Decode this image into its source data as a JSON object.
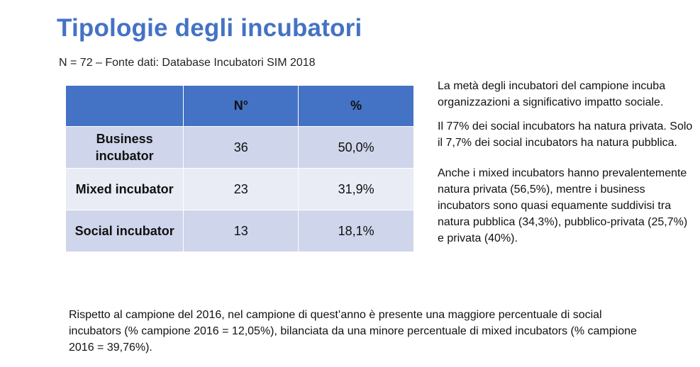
{
  "title": "Tipologie degli incubatori",
  "subtitle": "N = 72 – Fonte dati: Database Incubatori SIM 2018",
  "table": {
    "headers": [
      "",
      "N°",
      "%"
    ],
    "rows": [
      {
        "label": "Business incubator",
        "count": "36",
        "percent": "50,0%"
      },
      {
        "label": "Mixed incubator",
        "count": "23",
        "percent": "31,9%"
      },
      {
        "label": "Social incubator",
        "count": "13",
        "percent": "18,1%"
      }
    ]
  },
  "notes": [
    "La metà degli incubatori del campione incuba organizzazioni a significativo impatto sociale.",
    "Il 77% dei social incubators ha natura privata. Solo il 7,7% dei social incubators ha natura pubblica.",
    "Anche i mixed incubators hanno prevalentemente natura privata (56,5%), mentre i business incubators sono quasi equamente suddivisi tra natura pubblica (34,3%), pubblico-privata (25,7%) e privata (40%)."
  ],
  "footer": "Rispetto al campione del 2016, nel campione di quest’anno è presente una maggiore percentuale di social incubators (% campione 2016 = 12,05%), bilanciata da una minore percentuale di mixed incubators (% campione 2016 = 39,76%)."
}
